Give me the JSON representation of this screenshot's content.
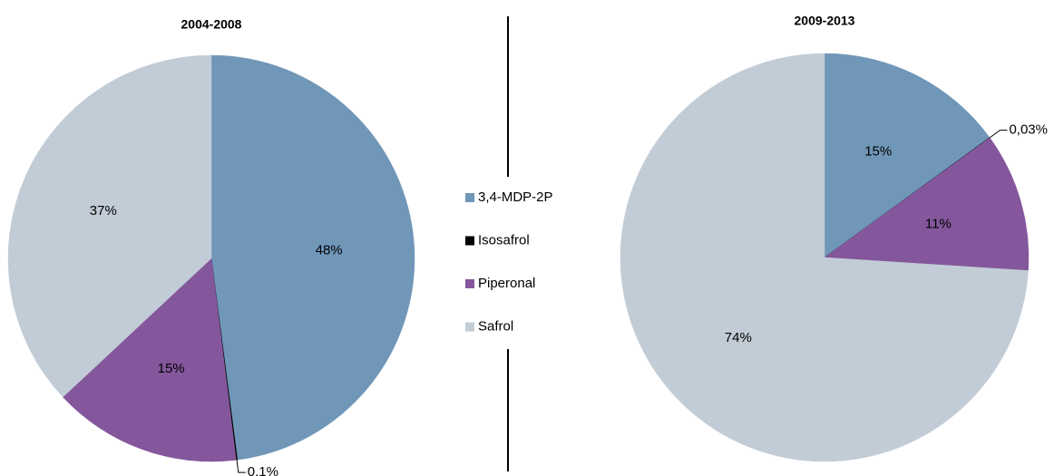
{
  "chart_data": [
    {
      "type": "pie",
      "title": "2004-2008",
      "values": [
        48,
        0.1,
        15,
        37
      ],
      "value_labels": [
        "48%",
        "0,1%",
        "15%",
        "37%"
      ]
    },
    {
      "type": "pie",
      "title": "2009-2013",
      "values": [
        15,
        0.03,
        11,
        74
      ],
      "value_labels": [
        "15%",
        "0,03%",
        "11%",
        "74%"
      ]
    }
  ],
  "legend": {
    "categories": [
      "3,4-MDP-2P",
      "Isosafrol",
      "Piperonal",
      "Safrol"
    ],
    "colors": [
      "#7096b8",
      "#000000",
      "#84579c",
      "#c2ccd6"
    ]
  }
}
